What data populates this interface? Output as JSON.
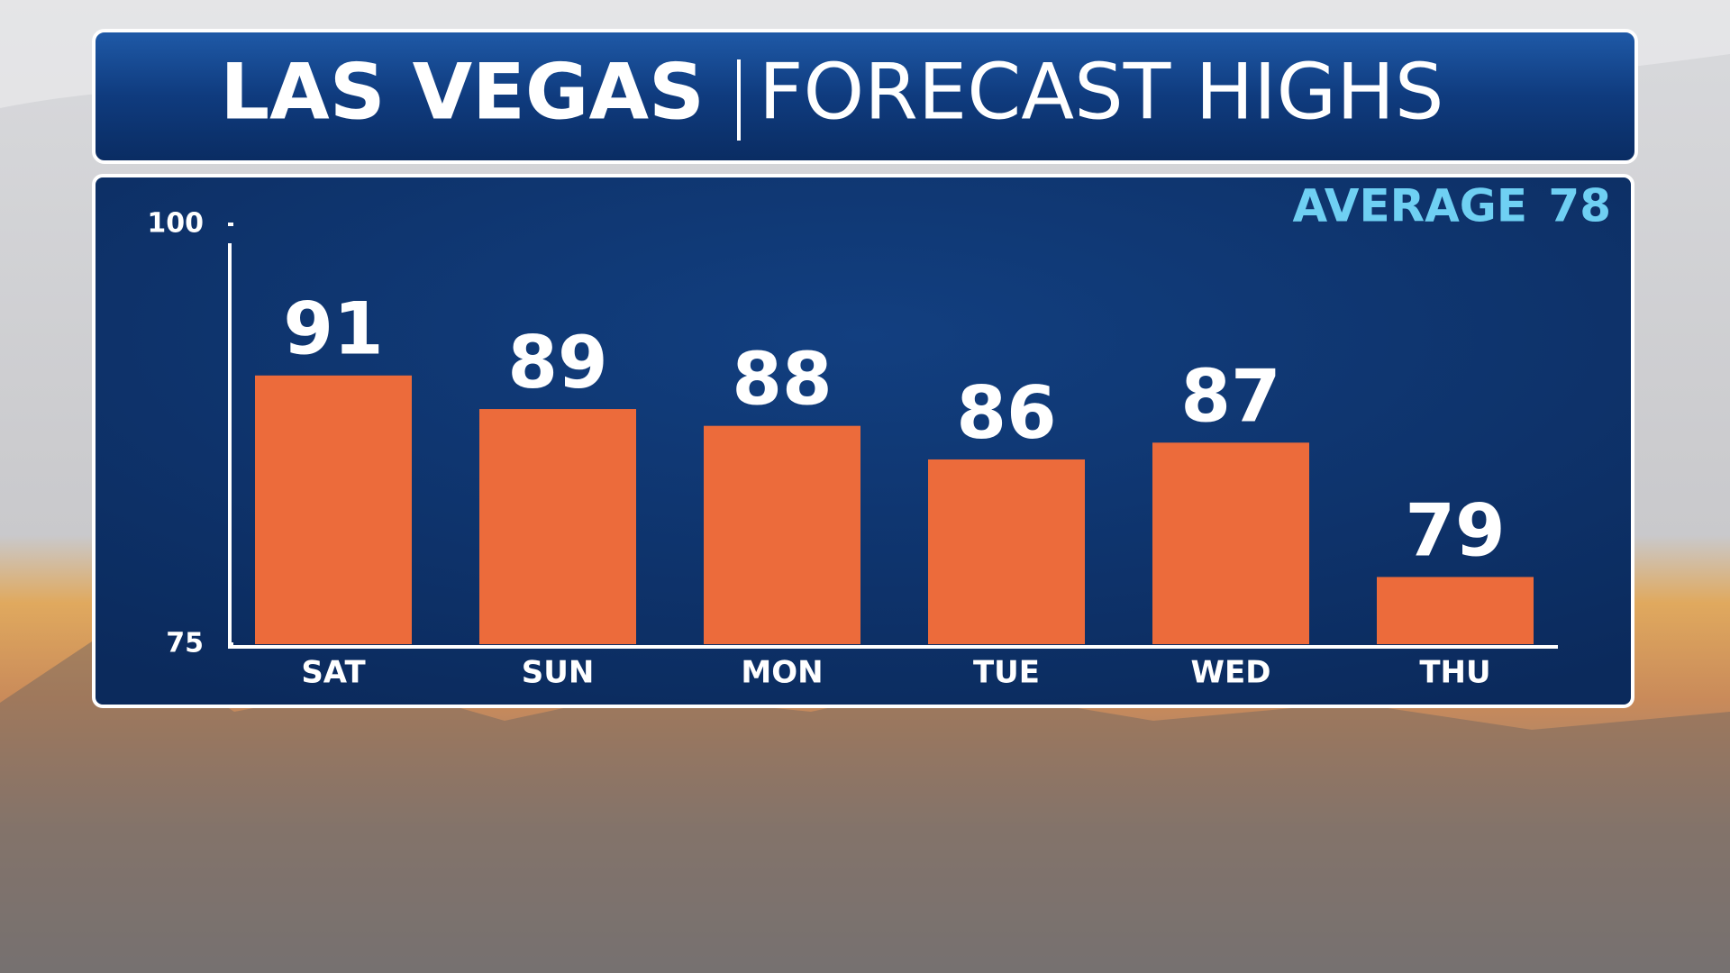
{
  "chart_data": {
    "type": "bar",
    "title": "LAS VEGAS",
    "subtitle": "FORECAST HIGHS",
    "average_label": "AVERAGE",
    "average": 78,
    "categories": [
      "SAT",
      "SUN",
      "MON",
      "TUE",
      "WED",
      "THU"
    ],
    "values": [
      91,
      89,
      88,
      86,
      87,
      79
    ],
    "color": "#ec6b3b",
    "ylim": [
      75,
      100
    ],
    "yticks": [
      75,
      100
    ]
  }
}
